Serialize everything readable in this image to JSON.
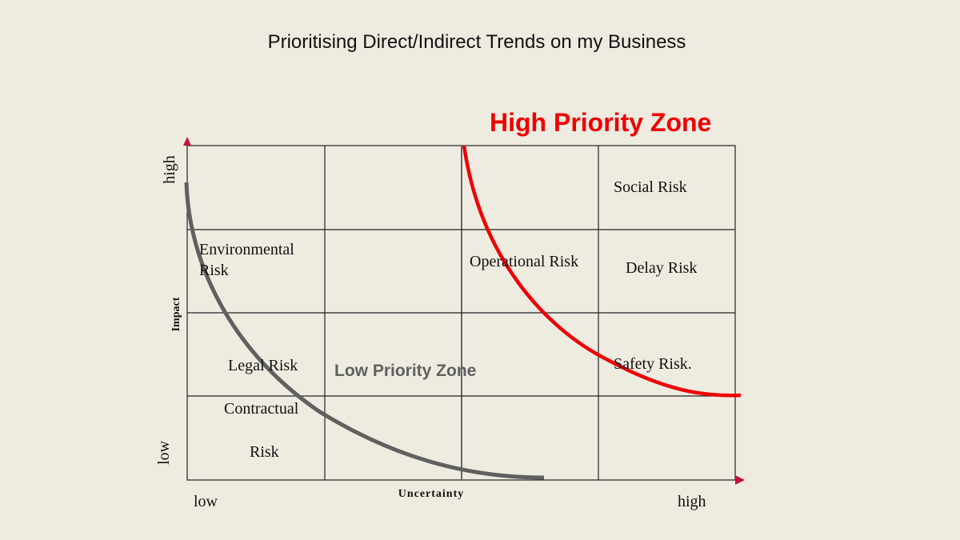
{
  "title": "Prioritising Direct/Indirect Trends on my Business",
  "axes": {
    "x_label": "Uncertainty",
    "y_label": "Impact",
    "x_low": "low",
    "x_high": "high",
    "y_low": "low",
    "y_high": "high"
  },
  "zones": {
    "high": "High Priority Zone",
    "low": "Low Priority Zone"
  },
  "risks": {
    "social": "Social Risk",
    "environmental_1": "Environmental",
    "environmental_2": "Risk",
    "operational": "Operational Risk",
    "delay": "Delay Risk",
    "legal": "Legal Risk",
    "safety": "Safety Risk.",
    "contractual_1": "Contractual",
    "contractual_2": "Risk"
  },
  "colors": {
    "background": "#eeebe1",
    "high_zone": "#ee0000",
    "low_zone": "#606060",
    "arrow": "#c0143c"
  }
}
